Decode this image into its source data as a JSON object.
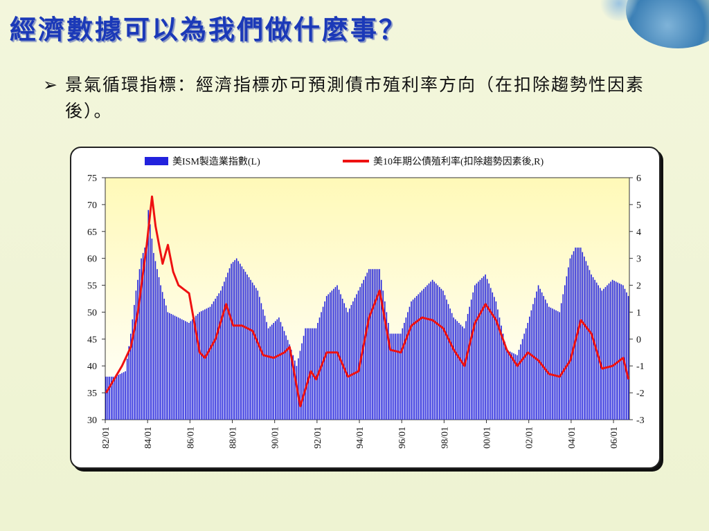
{
  "slide": {
    "title": "經濟數據可以為我們做什麼事？",
    "bullet": "景氣循環指標：經濟指標亦可預測債市殖利率方向（在扣除趨勢性因素後）。"
  },
  "chart_data": {
    "type": "bar+line",
    "legend": [
      "美ISM製造業指數(L)",
      "美10年期公債殖利率(扣除趨勢因素後,R)"
    ],
    "legend_placement": "top",
    "colors": {
      "bars": "#2222dd",
      "line": "#ee1111",
      "plot_bg_top": "#fffac0",
      "plot_bg_bottom": "#ffffff"
    },
    "y_left": {
      "min": 30,
      "max": 75,
      "ticks": [
        "75",
        "70",
        "65",
        "60",
        "55",
        "50",
        "45",
        "40",
        "35",
        "30"
      ]
    },
    "y_right": {
      "min": -3,
      "max": 6,
      "ticks": [
        "6",
        "5",
        "4",
        "3",
        "2",
        "1",
        "0",
        "-1",
        "-2",
        "-3"
      ]
    },
    "x_ticks": [
      "82/01",
      "84/01",
      "86/01",
      "88/01",
      "90/01",
      "92/01",
      "94/01",
      "96/01",
      "98/01",
      "00/01",
      "02/01",
      "04/01",
      "06/01"
    ],
    "x_start": "1982-01",
    "x_end": "2006-09",
    "ism_anchor_points": [
      [
        "1982-01",
        38
      ],
      [
        "1982-06",
        38
      ],
      [
        "1982-12",
        39
      ],
      [
        "1983-03",
        46
      ],
      [
        "1983-06",
        54
      ],
      [
        "1983-09",
        60
      ],
      [
        "1983-12",
        63
      ],
      [
        "1984-01",
        69
      ],
      [
        "1984-04",
        61
      ],
      [
        "1984-08",
        55
      ],
      [
        "1984-12",
        50
      ],
      [
        "1985-06",
        49
      ],
      [
        "1985-12",
        48
      ],
      [
        "1986-06",
        50
      ],
      [
        "1986-12",
        51
      ],
      [
        "1987-06",
        54
      ],
      [
        "1987-12",
        59
      ],
      [
        "1988-03",
        60
      ],
      [
        "1988-09",
        57
      ],
      [
        "1989-03",
        54
      ],
      [
        "1989-09",
        47
      ],
      [
        "1990-03",
        49
      ],
      [
        "1990-09",
        44
      ],
      [
        "1991-01",
        40
      ],
      [
        "1991-06",
        47
      ],
      [
        "1991-12",
        47
      ],
      [
        "1992-06",
        53
      ],
      [
        "1992-12",
        55
      ],
      [
        "1993-06",
        50
      ],
      [
        "1993-12",
        54
      ],
      [
        "1994-06",
        58
      ],
      [
        "1994-12",
        58
      ],
      [
        "1995-06",
        46
      ],
      [
        "1995-12",
        46
      ],
      [
        "1996-06",
        52
      ],
      [
        "1996-12",
        54
      ],
      [
        "1997-06",
        56
      ],
      [
        "1997-12",
        54
      ],
      [
        "1998-06",
        49
      ],
      [
        "1998-12",
        47
      ],
      [
        "1999-06",
        55
      ],
      [
        "1999-12",
        57
      ],
      [
        "2000-06",
        52
      ],
      [
        "2000-12",
        43
      ],
      [
        "2001-06",
        42
      ],
      [
        "2001-12",
        48
      ],
      [
        "2002-06",
        55
      ],
      [
        "2002-12",
        51
      ],
      [
        "2003-06",
        50
      ],
      [
        "2003-12",
        60
      ],
      [
        "2004-03",
        62
      ],
      [
        "2004-06",
        62
      ],
      [
        "2004-12",
        57
      ],
      [
        "2005-06",
        54
      ],
      [
        "2005-12",
        56
      ],
      [
        "2006-06",
        55
      ],
      [
        "2006-09",
        53
      ]
    ],
    "yield_anchor_points": [
      [
        "1982-01",
        -2
      ],
      [
        "1982-10",
        -1
      ],
      [
        "1983-03",
        -0.3
      ],
      [
        "1983-07",
        1
      ],
      [
        "1983-12",
        3.5
      ],
      [
        "1984-03",
        5.3
      ],
      [
        "1984-05",
        4.2
      ],
      [
        "1984-09",
        2.8
      ],
      [
        "1984-12",
        3.5
      ],
      [
        "1985-03",
        2.5
      ],
      [
        "1985-06",
        2.0
      ],
      [
        "1985-12",
        1.7
      ],
      [
        "1986-06",
        -0.5
      ],
      [
        "1986-09",
        -0.7
      ],
      [
        "1987-03",
        0
      ],
      [
        "1987-09",
        1.3
      ],
      [
        "1988-01",
        0.5
      ],
      [
        "1988-06",
        0.5
      ],
      [
        "1988-12",
        0.3
      ],
      [
        "1989-06",
        -0.6
      ],
      [
        "1989-12",
        -0.7
      ],
      [
        "1990-06",
        -0.5
      ],
      [
        "1990-09",
        -0.3
      ],
      [
        "1991-03",
        -2.5
      ],
      [
        "1991-09",
        -1.2
      ],
      [
        "1991-12",
        -1.5
      ],
      [
        "1992-06",
        -0.5
      ],
      [
        "1992-12",
        -0.5
      ],
      [
        "1993-06",
        -1.4
      ],
      [
        "1993-12",
        -1.2
      ],
      [
        "1994-06",
        0.8
      ],
      [
        "1994-12",
        1.8
      ],
      [
        "1995-06",
        -0.4
      ],
      [
        "1995-12",
        -0.5
      ],
      [
        "1996-06",
        0.5
      ],
      [
        "1996-12",
        0.8
      ],
      [
        "1997-06",
        0.7
      ],
      [
        "1997-12",
        0.4
      ],
      [
        "1998-06",
        -0.4
      ],
      [
        "1998-12",
        -1.0
      ],
      [
        "1999-06",
        0.6
      ],
      [
        "1999-12",
        1.3
      ],
      [
        "2000-06",
        0.7
      ],
      [
        "2000-12",
        -0.4
      ],
      [
        "2001-06",
        -1.0
      ],
      [
        "2001-12",
        -0.5
      ],
      [
        "2002-06",
        -0.8
      ],
      [
        "2002-12",
        -1.3
      ],
      [
        "2003-06",
        -1.4
      ],
      [
        "2003-12",
        -0.8
      ],
      [
        "2004-06",
        0.7
      ],
      [
        "2004-12",
        0.2
      ],
      [
        "2005-06",
        -1.1
      ],
      [
        "2005-12",
        -1.0
      ],
      [
        "2006-06",
        -0.7
      ],
      [
        "2006-09",
        -1.5
      ]
    ]
  }
}
